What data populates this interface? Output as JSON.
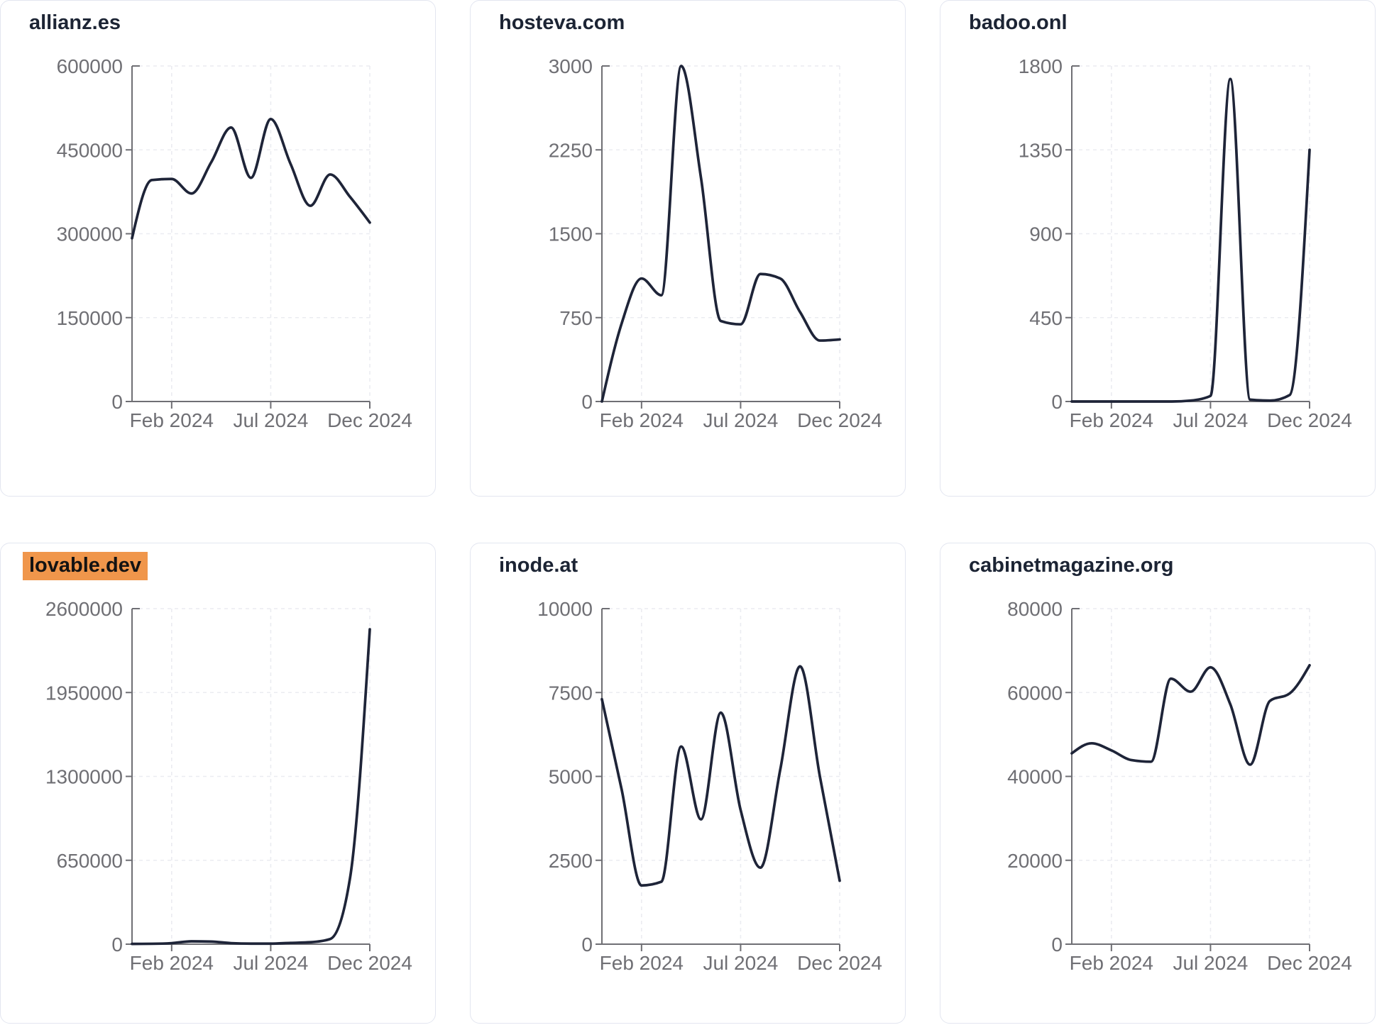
{
  "page": {
    "background": "#ffffff",
    "card_background": "#ffffff",
    "card_border_color": "#e3e6f0",
    "line_color": "#1e2438",
    "axis_color": "#6f6f74",
    "grid_color": "#ebecf1",
    "tick_label_color": "#6f6f74",
    "title_color": "#1c2434",
    "highlight_color": "#f0964b"
  },
  "chart_data": {
    "type": "line",
    "x": [
      "Dec 2023",
      "Jan 2024",
      "Feb 2024",
      "Mar 2024",
      "Apr 2024",
      "May 2024",
      "Jun 2024",
      "Jul 2024",
      "Aug 2024",
      "Sep 2024",
      "Oct 2024",
      "Nov 2024",
      "Dec 2024"
    ],
    "x_tick_labels": [
      "Feb 2024",
      "Jul 2024",
      "Dec 2024"
    ],
    "x_tick_indices": [
      2,
      7,
      12
    ],
    "grid": true,
    "legend": false,
    "charts": [
      {
        "title": "allianz.es",
        "highlighted": false,
        "ylim": [
          0,
          600000
        ],
        "yticks": [
          0,
          150000,
          300000,
          450000,
          600000
        ],
        "values": [
          292000,
          396000,
          398000,
          372000,
          428000,
          490000,
          400000,
          505000,
          425000,
          350000,
          406000,
          366000,
          320000
        ]
      },
      {
        "title": "hosteva.com",
        "highlighted": false,
        "ylim": [
          0,
          3000
        ],
        "yticks": [
          0,
          750,
          1500,
          2250,
          3000
        ],
        "values": [
          0,
          700,
          1100,
          950,
          3000,
          2000,
          720,
          690,
          1140,
          1100,
          800,
          545,
          555
        ]
      },
      {
        "title": "badoo.onl",
        "highlighted": false,
        "ylim": [
          0,
          1800
        ],
        "yticks": [
          0,
          450,
          900,
          1350,
          1800
        ],
        "values": [
          0,
          0,
          0,
          0,
          0,
          0,
          5,
          30,
          1730,
          10,
          5,
          35,
          1350
        ]
      },
      {
        "title": "lovable.dev",
        "highlighted": true,
        "ylim": [
          0,
          2600000
        ],
        "yticks": [
          0,
          650000,
          1300000,
          1950000,
          2600000
        ],
        "values": [
          2000,
          3000,
          8000,
          22000,
          20000,
          8000,
          4000,
          4000,
          10000,
          15000,
          40000,
          510000,
          2440000
        ]
      },
      {
        "title": "inode.at",
        "highlighted": false,
        "ylim": [
          0,
          10000
        ],
        "yticks": [
          0,
          2500,
          5000,
          7500,
          10000
        ],
        "values": [
          7300,
          4600,
          1750,
          1860,
          5890,
          3720,
          6900,
          4000,
          2280,
          5200,
          8280,
          5000,
          1890
        ]
      },
      {
        "title": "cabinetmagazine.org",
        "highlighted": false,
        "ylim": [
          0,
          80000
        ],
        "yticks": [
          0,
          20000,
          40000,
          60000,
          80000
        ],
        "values": [
          45500,
          47900,
          46200,
          43900,
          43500,
          63300,
          60200,
          66000,
          57200,
          42800,
          58000,
          59800,
          66500
        ]
      }
    ]
  }
}
